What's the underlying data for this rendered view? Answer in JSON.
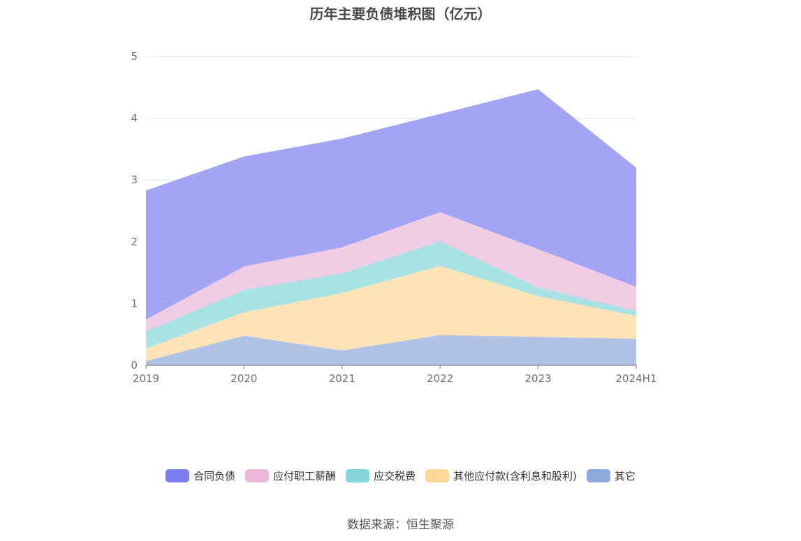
{
  "chart_data": {
    "type": "area",
    "stacked": true,
    "title": "历年主要负债堆积图（亿元）",
    "categories": [
      "2019",
      "2020",
      "2021",
      "2022",
      "2023",
      "2024H1"
    ],
    "ylim": [
      0,
      5
    ],
    "yticks": [
      "0",
      "1",
      "2",
      "3",
      "4",
      "5"
    ],
    "grid": true,
    "legend_position": "bottom",
    "series": [
      {
        "name": "其它",
        "color": "#8faadc",
        "values": [
          0.07,
          0.48,
          0.24,
          0.49,
          0.46,
          0.43
        ]
      },
      {
        "name": "其他应付款(含利息和股利)",
        "color": "#ffd898",
        "values": [
          0.2,
          0.38,
          0.93,
          1.12,
          0.66,
          0.37
        ]
      },
      {
        "name": "应交税费",
        "color": "#84d6d8",
        "values": [
          0.28,
          0.36,
          0.32,
          0.4,
          0.14,
          0.08
        ]
      },
      {
        "name": "应付职工薪酬",
        "color": "#ebb8da",
        "values": [
          0.19,
          0.38,
          0.42,
          0.47,
          0.62,
          0.39
        ]
      },
      {
        "name": "合同负债",
        "color": "#7b7ef0",
        "values": [
          2.09,
          1.78,
          1.76,
          1.59,
          2.59,
          1.93
        ]
      }
    ],
    "legend_order": [
      "合同负债",
      "应付职工薪酬",
      "应交税费",
      "其他应付款(含利息和股利)",
      "其它"
    ]
  },
  "source": "数据来源：恒生聚源"
}
